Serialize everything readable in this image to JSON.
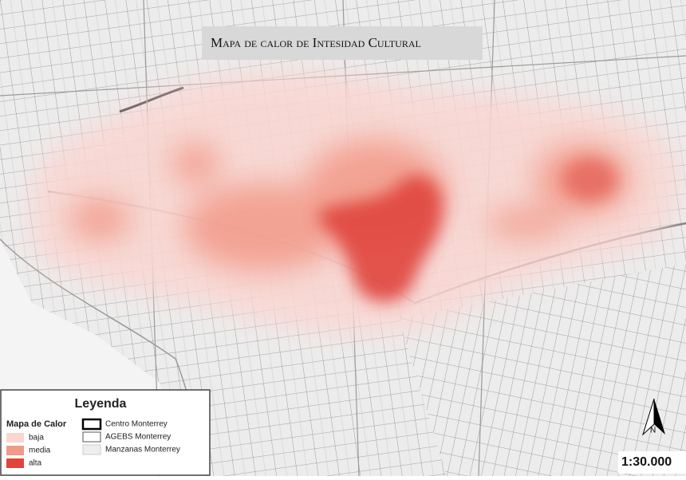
{
  "title": "Mapa de calor de Intesidad Cultural",
  "legend": {
    "title": "Leyenda",
    "heat_title": "Mapa de Calor",
    "heat_classes": [
      {
        "label": "baja",
        "color": "#f9d6d2"
      },
      {
        "label": "media",
        "color": "#f29a88"
      },
      {
        "label": "alta",
        "color": "#e0443c"
      }
    ],
    "layers": [
      {
        "label": "Centro Monterrey"
      },
      {
        "label": "AGEBS Monterrey"
      },
      {
        "label": "Manzanas Monterrey"
      }
    ]
  },
  "north": "N",
  "scale": "1:30.000"
}
